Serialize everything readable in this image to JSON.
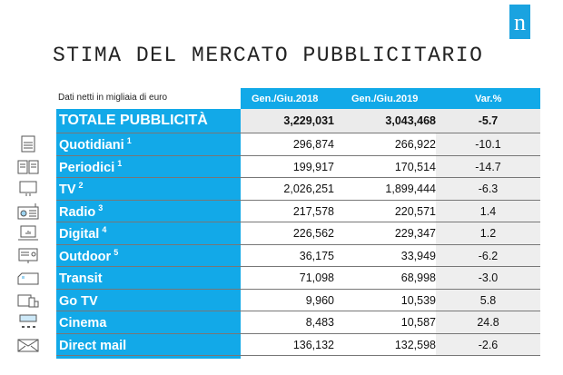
{
  "logo": "n",
  "title": "STIMA DEL MERCATO PUBBLICITARIO",
  "subtitle": "Dati netti in migliaia di euro",
  "columns": [
    "Gen./Giu.2018",
    "Gen./Giu.2019",
    "Var.%"
  ],
  "total": {
    "label": "TOTALE PUBBLICITÀ",
    "v2018": "3,229,031",
    "v2019": "3,043,468",
    "var": "-5.7"
  },
  "rows": [
    {
      "label": "Quotidiani",
      "note": "1",
      "icon": "newspaper-icon",
      "v2018": "296,874",
      "v2019": "266,922",
      "var": "-10.1"
    },
    {
      "label": "Periodici",
      "note": "1",
      "icon": "open-book-icon",
      "v2018": "199,917",
      "v2019": "170,514",
      "var": "-14.7"
    },
    {
      "label": "TV",
      "note": "2",
      "icon": "tv-icon",
      "v2018": "2,026,251",
      "v2019": "1,899,444",
      "var": "-6.3"
    },
    {
      "label": "Radio",
      "note": "3",
      "icon": "radio-icon",
      "v2018": "217,578",
      "v2019": "220,571",
      "var": "1.4"
    },
    {
      "label": "Digital",
      "note": "4",
      "icon": "laptop-icon",
      "v2018": "226,562",
      "v2019": "229,347",
      "var": "1.2"
    },
    {
      "label": "Outdoor",
      "note": "5",
      "icon": "billboard-icon",
      "v2018": "36,175",
      "v2019": "33,949",
      "var": "-6.2"
    },
    {
      "label": "Transit",
      "note": "",
      "icon": "van-icon",
      "v2018": "71,098",
      "v2019": "68,998",
      "var": "-3.0"
    },
    {
      "label": "Go TV",
      "note": "",
      "icon": "devices-icon",
      "v2018": "9,960",
      "v2019": "10,539",
      "var": "5.8"
    },
    {
      "label": "Cinema",
      "note": "",
      "icon": "cinema-icon",
      "v2018": "8,483",
      "v2019": "10,587",
      "var": "24.8"
    },
    {
      "label": "Direct mail",
      "note": "",
      "icon": "envelope-icon",
      "v2018": "136,132",
      "v2019": "132,598",
      "var": "-2.6"
    }
  ],
  "colors": {
    "accent": "#12a9e8"
  }
}
